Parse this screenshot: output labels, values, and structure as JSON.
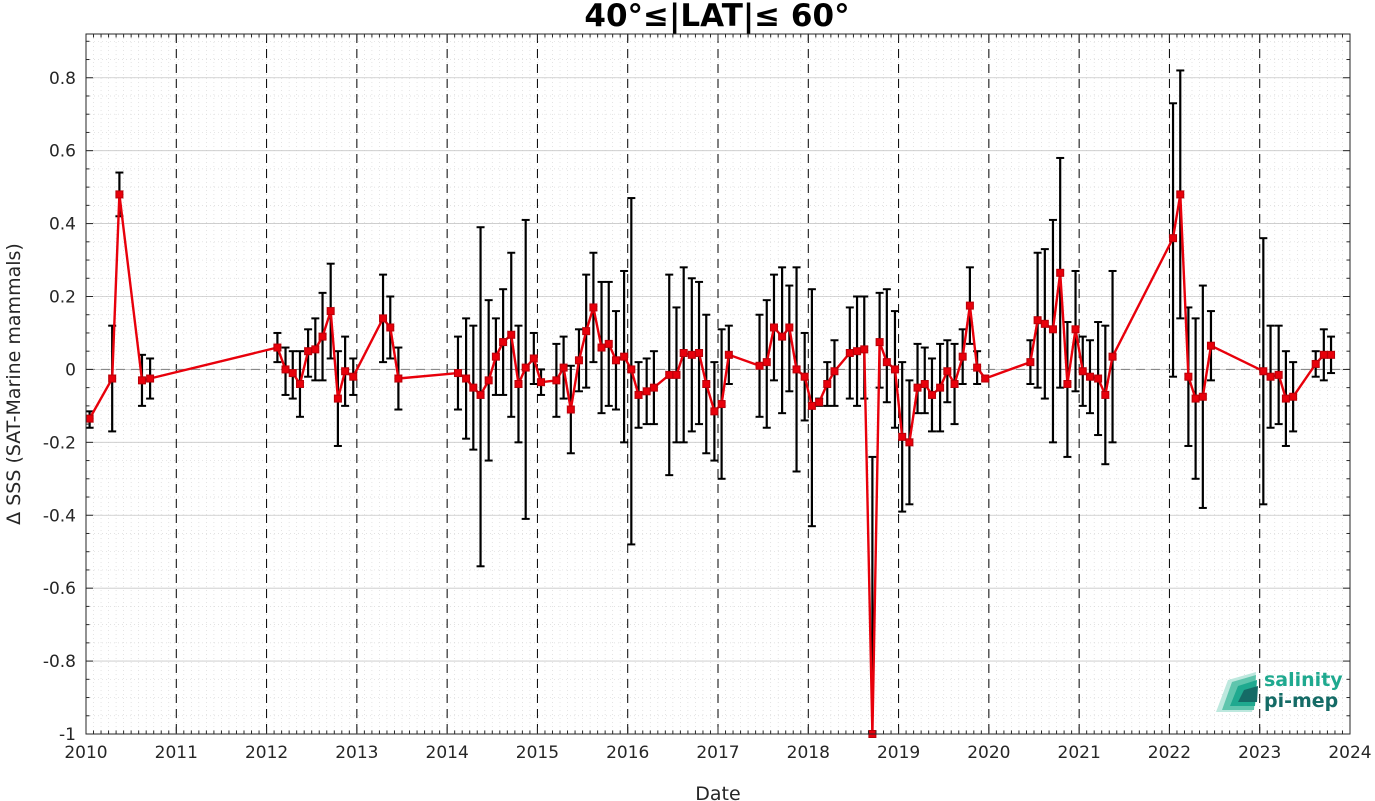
{
  "chart_data": {
    "type": "line",
    "title": "40°≤|LAT|≤ 60°",
    "xlabel": "Date",
    "ylabel": "Δ SSS (SAT-Marine mammals)",
    "xlim": [
      2010,
      2024
    ],
    "ylim": [
      -1,
      0.92
    ],
    "xticks": [
      2010,
      2011,
      2012,
      2013,
      2014,
      2015,
      2016,
      2017,
      2018,
      2019,
      2020,
      2021,
      2022,
      2023,
      2024
    ],
    "xtick_labels": [
      "2010",
      "2011",
      "2012",
      "2013",
      "2014",
      "2015",
      "2016",
      "2017",
      "2018",
      "2019",
      "2020",
      "2021",
      "2022",
      "2023",
      "2024"
    ],
    "yticks": [
      -1,
      -0.8,
      -0.6,
      -0.4,
      -0.2,
      0,
      0.2,
      0.4,
      0.6,
      0.8
    ],
    "ytick_labels": [
      "-1",
      "-0.8",
      "-0.6",
      "-0.4",
      "-0.2",
      "0",
      "0.2",
      "0.4",
      "0.6",
      "0.8"
    ],
    "grid": true,
    "year_lines": "dashed vertical at each year",
    "zero_line": "dashed horizontal at 0",
    "series": [
      {
        "color": "#e8000b",
        "marker": "square",
        "errorbar_color": "#000000",
        "points": [
          {
            "x": 2010.04,
            "y": -0.135,
            "lo": -0.16,
            "hi": -0.115
          },
          {
            "x": 2010.29,
            "y": -0.025,
            "lo": -0.17,
            "hi": 0.12
          },
          {
            "x": 2010.37,
            "y": 0.48,
            "lo": 0.42,
            "hi": 0.54
          },
          {
            "x": 2010.62,
            "y": -0.03,
            "lo": -0.1,
            "hi": 0.04
          },
          {
            "x": 2010.71,
            "y": -0.025,
            "lo": -0.08,
            "hi": 0.03
          },
          {
            "x": 2012.12,
            "y": 0.06,
            "lo": 0.02,
            "hi": 0.1
          },
          {
            "x": 2012.21,
            "y": 0.0,
            "lo": -0.07,
            "hi": 0.06
          },
          {
            "x": 2012.29,
            "y": -0.01,
            "lo": -0.08,
            "hi": 0.05
          },
          {
            "x": 2012.37,
            "y": -0.04,
            "lo": -0.13,
            "hi": 0.05
          },
          {
            "x": 2012.46,
            "y": 0.05,
            "lo": -0.02,
            "hi": 0.11
          },
          {
            "x": 2012.54,
            "y": 0.055,
            "lo": -0.03,
            "hi": 0.14
          },
          {
            "x": 2012.62,
            "y": 0.09,
            "lo": -0.03,
            "hi": 0.21
          },
          {
            "x": 2012.71,
            "y": 0.16,
            "lo": 0.03,
            "hi": 0.29
          },
          {
            "x": 2012.79,
            "y": -0.08,
            "lo": -0.21,
            "hi": 0.05
          },
          {
            "x": 2012.87,
            "y": -0.005,
            "lo": -0.1,
            "hi": 0.09
          },
          {
            "x": 2012.96,
            "y": -0.02,
            "lo": -0.07,
            "hi": 0.03
          },
          {
            "x": 2013.29,
            "y": 0.14,
            "lo": 0.02,
            "hi": 0.26
          },
          {
            "x": 2013.37,
            "y": 0.115,
            "lo": 0.03,
            "hi": 0.2
          },
          {
            "x": 2013.46,
            "y": -0.025,
            "lo": -0.11,
            "hi": 0.06
          },
          {
            "x": 2014.12,
            "y": -0.01,
            "lo": -0.11,
            "hi": 0.09
          },
          {
            "x": 2014.21,
            "y": -0.025,
            "lo": -0.19,
            "hi": 0.14
          },
          {
            "x": 2014.29,
            "y": -0.05,
            "lo": -0.22,
            "hi": 0.12
          },
          {
            "x": 2014.37,
            "y": -0.07,
            "lo": -0.54,
            "hi": 0.39
          },
          {
            "x": 2014.46,
            "y": -0.03,
            "lo": -0.25,
            "hi": 0.19
          },
          {
            "x": 2014.54,
            "y": 0.035,
            "lo": -0.07,
            "hi": 0.14
          },
          {
            "x": 2014.62,
            "y": 0.075,
            "lo": -0.07,
            "hi": 0.22
          },
          {
            "x": 2014.71,
            "y": 0.095,
            "lo": -0.13,
            "hi": 0.32
          },
          {
            "x": 2014.79,
            "y": -0.04,
            "lo": -0.2,
            "hi": 0.12
          },
          {
            "x": 2014.87,
            "y": 0.005,
            "lo": -0.41,
            "hi": 0.41
          },
          {
            "x": 2014.96,
            "y": 0.03,
            "lo": -0.04,
            "hi": 0.1
          },
          {
            "x": 2015.04,
            "y": -0.035,
            "lo": -0.07,
            "hi": 0.0
          },
          {
            "x": 2015.21,
            "y": -0.03,
            "lo": -0.13,
            "hi": 0.07
          },
          {
            "x": 2015.29,
            "y": 0.005,
            "lo": -0.08,
            "hi": 0.09
          },
          {
            "x": 2015.37,
            "y": -0.11,
            "lo": -0.23,
            "hi": 0.01
          },
          {
            "x": 2015.46,
            "y": 0.025,
            "lo": -0.06,
            "hi": 0.11
          },
          {
            "x": 2015.54,
            "y": 0.105,
            "lo": -0.05,
            "hi": 0.26
          },
          {
            "x": 2015.62,
            "y": 0.17,
            "lo": 0.02,
            "hi": 0.32
          },
          {
            "x": 2015.71,
            "y": 0.06,
            "lo": -0.12,
            "hi": 0.24
          },
          {
            "x": 2015.79,
            "y": 0.07,
            "lo": -0.1,
            "hi": 0.24
          },
          {
            "x": 2015.87,
            "y": 0.025,
            "lo": -0.11,
            "hi": 0.16
          },
          {
            "x": 2015.96,
            "y": 0.035,
            "lo": -0.2,
            "hi": 0.27
          },
          {
            "x": 2016.04,
            "y": 0.0,
            "lo": -0.48,
            "hi": 0.47
          },
          {
            "x": 2016.12,
            "y": -0.07,
            "lo": -0.16,
            "hi": 0.02
          },
          {
            "x": 2016.21,
            "y": -0.06,
            "lo": -0.15,
            "hi": 0.03
          },
          {
            "x": 2016.29,
            "y": -0.05,
            "lo": -0.15,
            "hi": 0.05
          },
          {
            "x": 2016.46,
            "y": -0.015,
            "lo": -0.29,
            "hi": 0.26
          },
          {
            "x": 2016.54,
            "y": -0.015,
            "lo": -0.2,
            "hi": 0.17
          },
          {
            "x": 2016.62,
            "y": 0.045,
            "lo": -0.2,
            "hi": 0.28
          },
          {
            "x": 2016.71,
            "y": 0.04,
            "lo": -0.17,
            "hi": 0.25
          },
          {
            "x": 2016.79,
            "y": 0.045,
            "lo": -0.15,
            "hi": 0.24
          },
          {
            "x": 2016.87,
            "y": -0.04,
            "lo": -0.23,
            "hi": 0.15
          },
          {
            "x": 2016.96,
            "y": -0.115,
            "lo": -0.25,
            "hi": 0.02
          },
          {
            "x": 2017.04,
            "y": -0.095,
            "lo": -0.3,
            "hi": 0.11
          },
          {
            "x": 2017.12,
            "y": 0.04,
            "lo": -0.04,
            "hi": 0.12
          },
          {
            "x": 2017.46,
            "y": 0.01,
            "lo": -0.13,
            "hi": 0.15
          },
          {
            "x": 2017.54,
            "y": 0.02,
            "lo": -0.16,
            "hi": 0.19
          },
          {
            "x": 2017.62,
            "y": 0.115,
            "lo": -0.03,
            "hi": 0.26
          },
          {
            "x": 2017.71,
            "y": 0.09,
            "lo": -0.12,
            "hi": 0.28
          },
          {
            "x": 2017.79,
            "y": 0.115,
            "lo": -0.06,
            "hi": 0.23
          },
          {
            "x": 2017.87,
            "y": 0.0,
            "lo": -0.28,
            "hi": 0.28
          },
          {
            "x": 2017.96,
            "y": -0.02,
            "lo": -0.14,
            "hi": 0.1
          },
          {
            "x": 2018.04,
            "y": -0.1,
            "lo": -0.43,
            "hi": 0.22
          },
          {
            "x": 2018.12,
            "y": -0.09,
            "lo": -0.1,
            "hi": -0.08
          },
          {
            "x": 2018.21,
            "y": -0.04,
            "lo": -0.1,
            "hi": 0.02
          },
          {
            "x": 2018.29,
            "y": -0.005,
            "lo": -0.1,
            "hi": 0.08
          },
          {
            "x": 2018.46,
            "y": 0.045,
            "lo": -0.08,
            "hi": 0.17
          },
          {
            "x": 2018.54,
            "y": 0.05,
            "lo": -0.1,
            "hi": 0.2
          },
          {
            "x": 2018.62,
            "y": 0.055,
            "lo": -0.08,
            "hi": 0.2
          },
          {
            "x": 2018.71,
            "y": -1.0,
            "lo": -1.0,
            "hi": -0.24
          },
          {
            "x": 2018.79,
            "y": 0.075,
            "lo": -0.05,
            "hi": 0.21
          },
          {
            "x": 2018.87,
            "y": 0.02,
            "lo": -0.09,
            "hi": 0.22
          },
          {
            "x": 2018.96,
            "y": 0.0,
            "lo": -0.16,
            "hi": 0.16
          },
          {
            "x": 2019.04,
            "y": -0.185,
            "lo": -0.39,
            "hi": 0.02
          },
          {
            "x": 2019.12,
            "y": -0.2,
            "lo": -0.37,
            "hi": -0.03
          },
          {
            "x": 2019.21,
            "y": -0.05,
            "lo": -0.12,
            "hi": 0.07
          },
          {
            "x": 2019.29,
            "y": -0.04,
            "lo": -0.12,
            "hi": 0.06
          },
          {
            "x": 2019.37,
            "y": -0.07,
            "lo": -0.17,
            "hi": 0.03
          },
          {
            "x": 2019.46,
            "y": -0.05,
            "lo": -0.17,
            "hi": 0.07
          },
          {
            "x": 2019.54,
            "y": -0.005,
            "lo": -0.09,
            "hi": 0.08
          },
          {
            "x": 2019.62,
            "y": -0.04,
            "lo": -0.15,
            "hi": 0.07
          },
          {
            "x": 2019.71,
            "y": 0.035,
            "lo": -0.04,
            "hi": 0.11
          },
          {
            "x": 2019.79,
            "y": 0.175,
            "lo": 0.07,
            "hi": 0.28
          },
          {
            "x": 2019.87,
            "y": 0.005,
            "lo": -0.04,
            "hi": 0.05
          },
          {
            "x": 2019.96,
            "y": -0.025,
            "lo": -0.03,
            "hi": -0.02
          },
          {
            "x": 2020.46,
            "y": 0.02,
            "lo": -0.04,
            "hi": 0.08
          },
          {
            "x": 2020.54,
            "y": 0.135,
            "lo": -0.05,
            "hi": 0.32
          },
          {
            "x": 2020.62,
            "y": 0.125,
            "lo": -0.08,
            "hi": 0.33
          },
          {
            "x": 2020.71,
            "y": 0.11,
            "lo": -0.2,
            "hi": 0.41
          },
          {
            "x": 2020.79,
            "y": 0.265,
            "lo": -0.05,
            "hi": 0.58
          },
          {
            "x": 2020.87,
            "y": -0.04,
            "lo": -0.24,
            "hi": 0.13
          },
          {
            "x": 2020.96,
            "y": 0.11,
            "lo": -0.06,
            "hi": 0.27
          },
          {
            "x": 2021.04,
            "y": -0.005,
            "lo": -0.1,
            "hi": 0.09
          },
          {
            "x": 2021.12,
            "y": -0.02,
            "lo": -0.12,
            "hi": 0.08
          },
          {
            "x": 2021.21,
            "y": -0.025,
            "lo": -0.18,
            "hi": 0.13
          },
          {
            "x": 2021.29,
            "y": -0.07,
            "lo": -0.26,
            "hi": 0.12
          },
          {
            "x": 2021.37,
            "y": 0.035,
            "lo": -0.2,
            "hi": 0.27
          },
          {
            "x": 2022.04,
            "y": 0.36,
            "lo": -0.02,
            "hi": 0.73
          },
          {
            "x": 2022.12,
            "y": 0.48,
            "lo": 0.14,
            "hi": 0.82
          },
          {
            "x": 2022.21,
            "y": -0.02,
            "lo": -0.21,
            "hi": 0.17
          },
          {
            "x": 2022.29,
            "y": -0.08,
            "lo": -0.3,
            "hi": 0.14
          },
          {
            "x": 2022.37,
            "y": -0.075,
            "lo": -0.38,
            "hi": 0.23
          },
          {
            "x": 2022.46,
            "y": 0.065,
            "lo": -0.03,
            "hi": 0.16
          },
          {
            "x": 2023.04,
            "y": -0.005,
            "lo": -0.37,
            "hi": 0.36
          },
          {
            "x": 2023.12,
            "y": -0.02,
            "lo": -0.16,
            "hi": 0.12
          },
          {
            "x": 2023.21,
            "y": -0.015,
            "lo": -0.15,
            "hi": 0.12
          },
          {
            "x": 2023.29,
            "y": -0.08,
            "lo": -0.21,
            "hi": 0.05
          },
          {
            "x": 2023.37,
            "y": -0.075,
            "lo": -0.17,
            "hi": 0.02
          },
          {
            "x": 2023.62,
            "y": 0.015,
            "lo": -0.02,
            "hi": 0.05
          },
          {
            "x": 2023.71,
            "y": 0.04,
            "lo": -0.03,
            "hi": 0.11
          },
          {
            "x": 2023.79,
            "y": 0.04,
            "lo": -0.01,
            "hi": 0.09
          }
        ]
      }
    ]
  },
  "logo": {
    "line1": "salinity",
    "line2": "pi-mep",
    "colors": [
      "#1fa98f",
      "#156b66",
      "#bde8de"
    ]
  }
}
